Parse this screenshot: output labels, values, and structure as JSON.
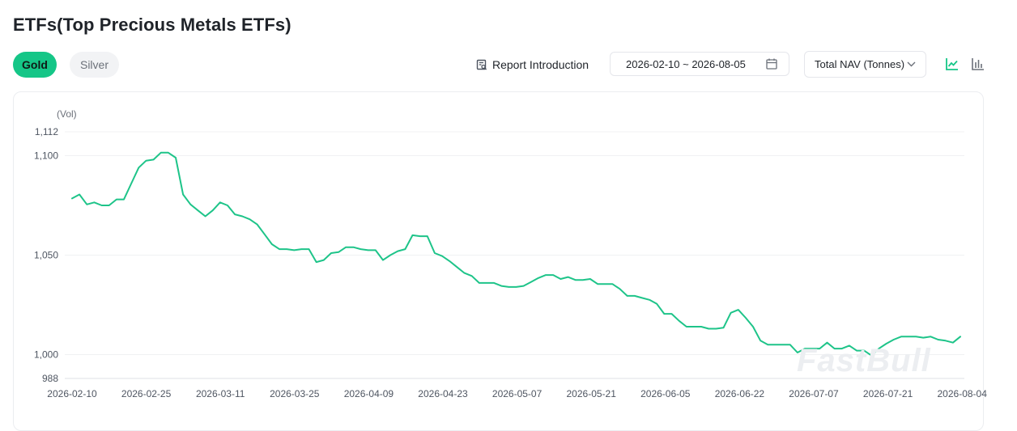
{
  "header": {
    "title": "ETFs(Top Precious Metals ETFs)"
  },
  "tabs": [
    {
      "label": "Gold",
      "active": true
    },
    {
      "label": "Silver",
      "active": false
    }
  ],
  "toolbar": {
    "report_label": "Report Introduction",
    "date_range": "2026-02-10 ~ 2026-08-05",
    "metric_select": "Total NAV (Tonnes)"
  },
  "watermark": "FastBull",
  "colors": {
    "accent": "#15c687",
    "line": "#1ec489",
    "grid": "#f0f1f3",
    "muted": "#6b7079"
  },
  "chart_data": {
    "type": "line",
    "ylabel": "(Vol)",
    "ylim": [
      988,
      1112
    ],
    "yticks": [
      "1,112",
      "1,100",
      "1,050",
      "1,000",
      "988"
    ],
    "ytick_values": [
      1112,
      1100,
      1050,
      1000,
      988
    ],
    "xtick_labels": [
      "2026-02-10",
      "2026-02-25",
      "2026-03-11",
      "2026-03-25",
      "2026-04-09",
      "2026-04-23",
      "2026-05-07",
      "2026-05-21",
      "2026-06-05",
      "2026-06-22",
      "2026-07-07",
      "2026-07-21",
      "2026-08-04"
    ],
    "grid": true,
    "series": [
      {
        "values": [
          1078.5,
          1080.5,
          1075.5,
          1076.5,
          1075,
          1075,
          1078,
          1078,
          1086,
          1094,
          1097.5,
          1098,
          1101.5,
          1101.5,
          1099,
          1080.5,
          1075.5,
          1072.5,
          1069.5,
          1072.5,
          1076.5,
          1075,
          1070.5,
          1069.5,
          1068,
          1065.5,
          1060.5,
          1055.5,
          1053,
          1053,
          1052.5,
          1053,
          1053,
          1046.5,
          1047.5,
          1051,
          1051.5,
          1054,
          1054,
          1053,
          1052.5,
          1052.5,
          1047.5,
          1050,
          1052,
          1053,
          1060,
          1059.5,
          1059.5,
          1051,
          1049.5,
          1047,
          1044,
          1041,
          1039.5,
          1036,
          1036,
          1036,
          1034.5,
          1034,
          1034,
          1034.5,
          1036.5,
          1038.5,
          1040,
          1040,
          1038,
          1039,
          1037.5,
          1037.5,
          1038,
          1035.5,
          1035.5,
          1035.5,
          1033,
          1029.5,
          1029.5,
          1028.5,
          1027.5,
          1025.5,
          1020.5,
          1020.5,
          1017,
          1014,
          1014,
          1014,
          1013,
          1013,
          1013.5,
          1021,
          1022.5,
          1018.5,
          1014,
          1007,
          1005,
          1005,
          1005,
          1005,
          1001,
          1003,
          1003,
          1003,
          1006,
          1003,
          1003,
          1004.5,
          1002,
          1002,
          999.5,
          1003,
          1005.5,
          1007.5,
          1009,
          1009,
          1009,
          1008.5,
          1009,
          1007.5,
          1007,
          1006,
          1009
        ]
      }
    ]
  }
}
